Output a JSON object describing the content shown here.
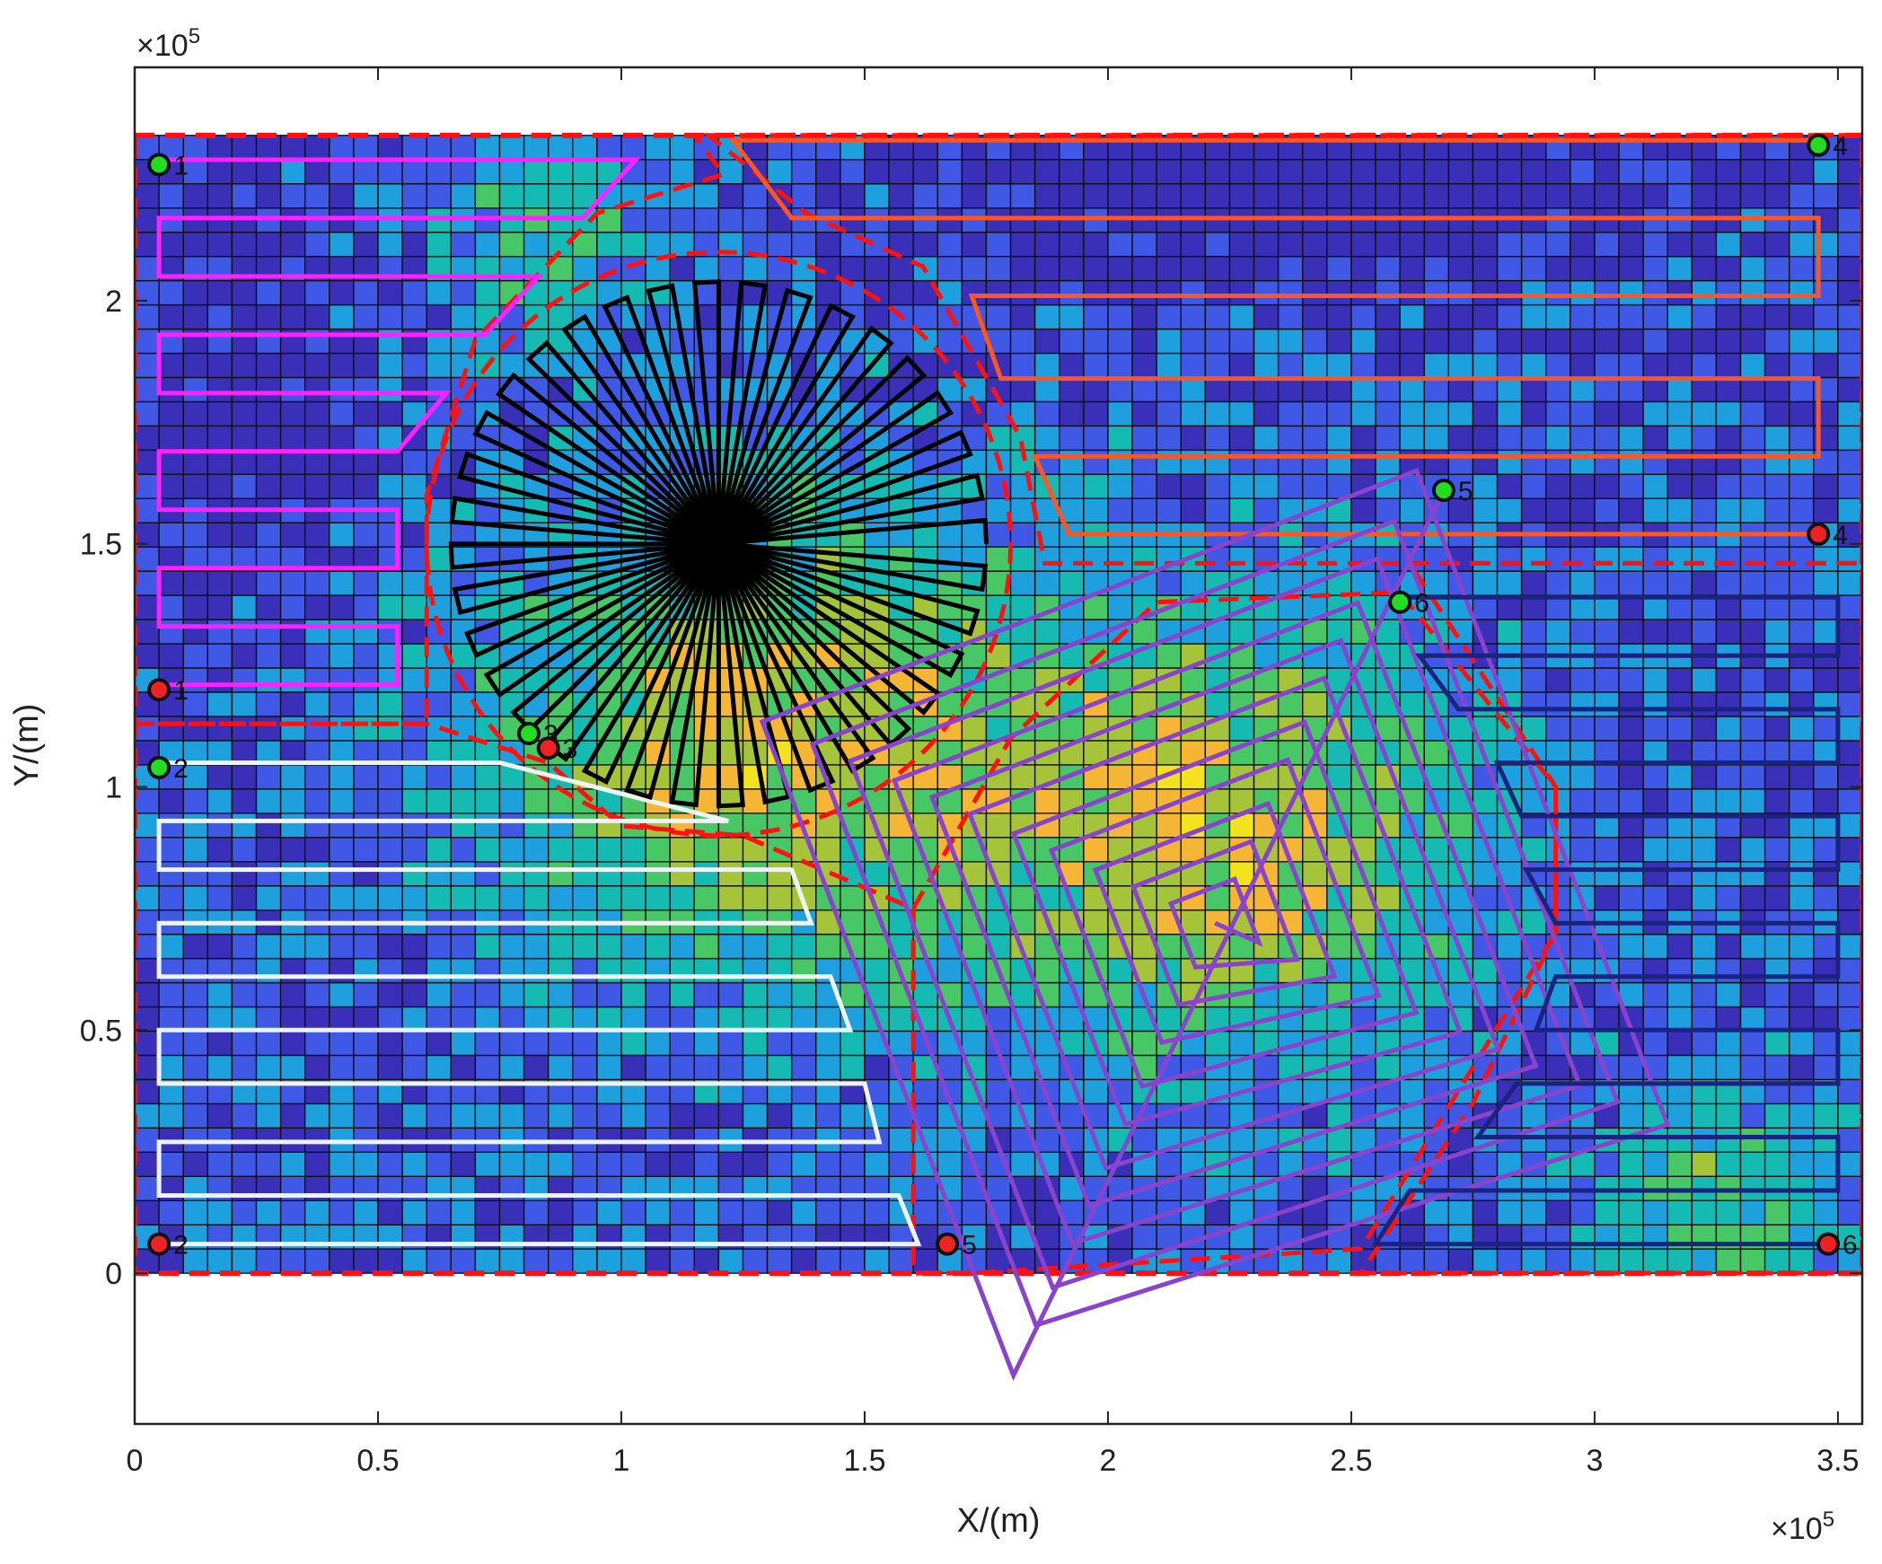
{
  "chart_data": {
    "type": "heatmap",
    "xlabel": "X/(m)",
    "ylabel": "Y/(m)",
    "x_exponent": "×10",
    "x_exponent_power": "5",
    "y_exponent": "×10",
    "y_exponent_power": "5",
    "xlim": [
      0,
      3.55
    ],
    "ylim": [
      -0.31,
      2.48
    ],
    "xticks": [
      0,
      0.5,
      1,
      1.5,
      2,
      2.5,
      3,
      3.5
    ],
    "xticklabels": [
      "0",
      "0.5",
      "1",
      "1.5",
      "2",
      "2.5",
      "3",
      "3.5"
    ],
    "yticks": [
      0,
      0.5,
      1,
      1.5,
      2
    ],
    "yticklabels": [
      "0",
      "0.5",
      "1",
      "1.5",
      "2"
    ],
    "grid_extent": {
      "x": [
        0,
        3.55
      ],
      "y": [
        0,
        2.34
      ]
    },
    "grid_cells": {
      "nx": 71,
      "ny": 47
    },
    "colormap": [
      "#3a2fb8",
      "#3f58e6",
      "#1fa0de",
      "#15bbb2",
      "#48c766",
      "#a6c43a",
      "#f5b636",
      "#f3e21e"
    ],
    "subregion_boundaries": [
      {
        "name": "region-1",
        "points": [
          [
            0,
            2.34
          ],
          [
            1.15,
            2.34
          ],
          [
            1.21,
            2.26
          ],
          [
            0.95,
            2.18
          ],
          [
            0.7,
            1.92
          ],
          [
            0.6,
            1.6
          ],
          [
            0.6,
            1.13
          ],
          [
            0,
            1.13
          ]
        ]
      },
      {
        "name": "region-2",
        "points": [
          [
            0,
            1.13
          ],
          [
            0.6,
            1.13
          ],
          [
            0.85,
            1.05
          ],
          [
            1.0,
            0.92
          ],
          [
            1.25,
            0.9
          ],
          [
            1.6,
            0.75
          ],
          [
            1.6,
            0
          ],
          [
            0,
            0
          ]
        ]
      },
      {
        "name": "region-3",
        "circle": {
          "cx": 1.2,
          "cy": 1.5,
          "r": 0.6
        }
      },
      {
        "name": "region-4",
        "points": [
          [
            1.18,
            2.34
          ],
          [
            3.55,
            2.34
          ],
          [
            3.55,
            1.46
          ],
          [
            1.87,
            1.46
          ],
          [
            1.82,
            1.72
          ],
          [
            1.62,
            2.07
          ],
          [
            1.38,
            2.18
          ]
        ]
      },
      {
        "name": "region-5",
        "points": [
          [
            1.6,
            0.75
          ],
          [
            1.8,
            1.1
          ],
          [
            2.1,
            1.38
          ],
          [
            2.6,
            1.4
          ],
          [
            2.92,
            1.0
          ],
          [
            2.92,
            0.7
          ],
          [
            2.52,
            0.05
          ],
          [
            1.72,
            0
          ],
          [
            1.6,
            0
          ]
        ]
      },
      {
        "name": "region-6",
        "points": [
          [
            2.62,
            1.46
          ],
          [
            3.55,
            1.46
          ],
          [
            3.55,
            0
          ],
          [
            2.52,
            0
          ],
          [
            2.75,
            0.35
          ],
          [
            2.92,
            0.7
          ],
          [
            2.92,
            1.0
          ]
        ]
      }
    ],
    "series": [
      {
        "type": "boustrophedon",
        "color": "#ff22ff",
        "points": [
          [
            0.05,
            2.29
          ],
          [
            1.03,
            2.29
          ],
          [
            0.92,
            2.17
          ],
          [
            0.05,
            2.17
          ],
          [
            0.05,
            2.05
          ],
          [
            0.83,
            2.05
          ],
          [
            0.72,
            1.93
          ],
          [
            0.05,
            1.93
          ],
          [
            0.05,
            1.81
          ],
          [
            0.64,
            1.81
          ],
          [
            0.54,
            1.69
          ],
          [
            0.05,
            1.69
          ],
          [
            0.05,
            1.57
          ],
          [
            0.54,
            1.57
          ],
          [
            0.54,
            1.45
          ],
          [
            0.05,
            1.45
          ],
          [
            0.05,
            1.33
          ],
          [
            0.54,
            1.33
          ],
          [
            0.54,
            1.21
          ],
          [
            0.05,
            1.21
          ]
        ]
      },
      {
        "type": "boustrophedon",
        "color": "#eef4f4",
        "points": [
          [
            0.05,
            1.05
          ],
          [
            0.75,
            1.05
          ],
          [
            1.22,
            0.93
          ],
          [
            0.05,
            0.93
          ],
          [
            0.05,
            0.83
          ],
          [
            1.35,
            0.83
          ],
          [
            1.39,
            0.72
          ],
          [
            0.05,
            0.72
          ],
          [
            0.05,
            0.61
          ],
          [
            1.43,
            0.61
          ],
          [
            1.47,
            0.5
          ],
          [
            0.05,
            0.5
          ],
          [
            0.05,
            0.39
          ],
          [
            1.5,
            0.39
          ],
          [
            1.53,
            0.27
          ],
          [
            0.05,
            0.27
          ],
          [
            0.05,
            0.16
          ],
          [
            1.57,
            0.16
          ],
          [
            1.61,
            0.06
          ],
          [
            0.05,
            0.06
          ]
        ]
      },
      {
        "type": "star",
        "color": "#000000",
        "center": [
          1.2,
          1.5
        ],
        "radius": 0.55,
        "spokes": 36
      },
      {
        "type": "boustrophedon",
        "color": "#ff5522",
        "points": [
          [
            3.46,
            2.33
          ],
          [
            1.23,
            2.33
          ],
          [
            1.35,
            2.17
          ],
          [
            3.46,
            2.17
          ],
          [
            3.46,
            2.01
          ],
          [
            1.72,
            2.01
          ],
          [
            1.78,
            1.84
          ],
          [
            3.46,
            1.84
          ],
          [
            3.46,
            1.68
          ],
          [
            1.85,
            1.68
          ],
          [
            1.92,
            1.52
          ],
          [
            3.46,
            1.52
          ]
        ]
      },
      {
        "type": "spiral",
        "color": "#8844cc",
        "center": [
          2.22,
          0.72
        ],
        "angle_deg": 21,
        "half_sizes": [
          0.07,
          0.13,
          0.19,
          0.26,
          0.32,
          0.39,
          0.45,
          0.51,
          0.58,
          0.64,
          0.72
        ],
        "end": [
          2.69,
          1.61
        ]
      },
      {
        "type": "boustrophedon",
        "color": "#1a237e",
        "points": [
          [
            2.6,
            1.39
          ],
          [
            3.5,
            1.39
          ],
          [
            3.5,
            1.27
          ],
          [
            2.64,
            1.27
          ],
          [
            2.72,
            1.16
          ],
          [
            3.5,
            1.16
          ],
          [
            3.5,
            1.05
          ],
          [
            2.8,
            1.05
          ],
          [
            2.85,
            0.94
          ],
          [
            3.5,
            0.94
          ],
          [
            3.5,
            0.83
          ],
          [
            2.86,
            0.83
          ],
          [
            2.92,
            0.72
          ],
          [
            3.5,
            0.72
          ],
          [
            3.5,
            0.61
          ],
          [
            2.92,
            0.61
          ],
          [
            2.88,
            0.5
          ],
          [
            3.5,
            0.5
          ],
          [
            3.5,
            0.39
          ],
          [
            2.84,
            0.39
          ],
          [
            2.76,
            0.28
          ],
          [
            3.5,
            0.28
          ],
          [
            3.5,
            0.17
          ],
          [
            2.62,
            0.17
          ],
          [
            2.55,
            0.06
          ],
          [
            3.48,
            0.06
          ]
        ]
      }
    ],
    "waypoints": [
      {
        "x": 0.05,
        "y": 2.28,
        "kind": "start",
        "label": "1"
      },
      {
        "x": 0.05,
        "y": 1.2,
        "kind": "end",
        "label": "1"
      },
      {
        "x": 0.05,
        "y": 1.04,
        "kind": "start",
        "label": "2"
      },
      {
        "x": 0.05,
        "y": 0.06,
        "kind": "end",
        "label": "2"
      },
      {
        "x": 0.81,
        "y": 1.11,
        "kind": "start",
        "label": "3"
      },
      {
        "x": 0.85,
        "y": 1.08,
        "kind": "end",
        "label": "3"
      },
      {
        "x": 3.46,
        "y": 2.32,
        "kind": "start",
        "label": "4"
      },
      {
        "x": 3.46,
        "y": 1.52,
        "kind": "end",
        "label": "4"
      },
      {
        "x": 2.69,
        "y": 1.61,
        "kind": "start",
        "label": "5"
      },
      {
        "x": 1.67,
        "y": 0.06,
        "kind": "end",
        "label": "5"
      },
      {
        "x": 2.6,
        "y": 1.38,
        "kind": "start",
        "label": "6"
      },
      {
        "x": 3.48,
        "y": 0.06,
        "kind": "end",
        "label": "6"
      }
    ]
  }
}
